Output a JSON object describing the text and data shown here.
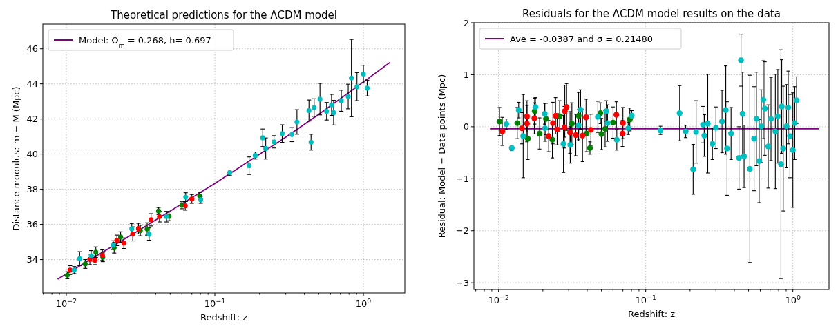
{
  "chart_data": [
    {
      "type": "scatter",
      "title": "Theoretical predictions for the ΛCDM model",
      "xlabel": "Redshift: z",
      "ylabel": "Distance modulus: m − M (Mpc)",
      "log": "x",
      "grid": true,
      "legend": "top left",
      "xlim": [
        0.00695,
        1.9
      ],
      "ylim": [
        32.1,
        47.4
      ],
      "xticks": [
        {
          "value": 0.007,
          "label": null
        },
        {
          "value": 0.008,
          "label": null
        },
        {
          "value": 0.009,
          "label": null
        },
        {
          "value": 0.01,
          "label": "10$^{−2}$"
        },
        {
          "value": 0.02,
          "label": null
        },
        {
          "value": 0.03,
          "label": null
        },
        {
          "value": 0.04,
          "label": null
        },
        {
          "value": 0.05,
          "label": null
        },
        {
          "value": 0.06,
          "label": null
        },
        {
          "value": 0.07,
          "label": null
        },
        {
          "value": 0.08,
          "label": null
        },
        {
          "value": 0.09,
          "label": null
        },
        {
          "value": 0.1,
          "label": "10$^{−1}$"
        },
        {
          "value": 0.2,
          "label": null
        },
        {
          "value": 0.3,
          "label": null
        },
        {
          "value": 0.4,
          "label": null
        },
        {
          "value": 0.5,
          "label": null
        },
        {
          "value": 0.6,
          "label": null
        },
        {
          "value": 0.7,
          "label": null
        },
        {
          "value": 0.8,
          "label": null
        },
        {
          "value": 0.9,
          "label": null
        },
        {
          "value": 1,
          "label": "10$^{0}$"
        }
      ],
      "yticks": [
        34,
        36,
        38,
        40,
        42,
        44,
        46
      ],
      "series": [
        {
          "type": "line",
          "name": "Model: Ω$_{m}$ = 0.268, h= 0.697",
          "color": "#800080",
          "line_style": "solid",
          "x": [
            0.0088,
            0.01,
            0.03,
            0.1,
            0.3,
            0.5,
            1.0,
            1.5
          ],
          "values": [
            32.9,
            33.18,
            35.6,
            38.33,
            40.97,
            42.26,
            44.11,
            45.2
          ]
        },
        {
          "marker": "circle",
          "color": "#008000",
          "x": [
            0.01015,
            0.0134,
            0.0158,
            0.0176,
            0.021,
            0.0232,
            0.0315,
            0.035,
            0.0418,
            0.0492,
            0.06,
            0.079
          ],
          "values": [
            33.11,
            33.75,
            34.42,
            34.13,
            34.67,
            35.28,
            35.65,
            35.74,
            36.76,
            36.46,
            37.09,
            37.62
          ],
          "errors": [
            0.2,
            0.25,
            0.3,
            0.25,
            0.3,
            0.3,
            0.3,
            0.35,
            0.2,
            0.25,
            0.2,
            0.2
          ]
        },
        {
          "marker": "circle",
          "color": "#ff0000",
          "x": [
            0.0106,
            0.0144,
            0.0156,
            0.0175,
            0.0219,
            0.0244,
            0.028,
            0.0306,
            0.0372,
            0.0424,
            0.0632,
            0.07
          ],
          "values": [
            33.4,
            34.01,
            33.96,
            34.25,
            35.09,
            34.93,
            35.46,
            35.76,
            36.26,
            36.44,
            37.06,
            37.45
          ],
          "errors": [
            0.25,
            0.3,
            0.25,
            0.3,
            0.3,
            0.3,
            0.4,
            0.3,
            0.35,
            0.3,
            0.25,
            0.25
          ]
        },
        {
          "marker": "circle",
          "color": "#00bfbf",
          "x": [
            0.0113,
            0.0123,
            0.0147,
            0.0207,
            0.0276,
            0.0361,
            0.0473,
            0.0636,
            0.0804,
            0.126,
            0.17,
            0.187,
            0.21,
            0.22,
            0.25,
            0.284,
            0.33,
            0.357,
            0.43,
            0.444,
            0.466,
            0.51,
            0.565,
            0.61,
            0.63,
            0.71,
            0.79,
            0.83,
            0.905,
            1.0,
            1.06
          ],
          "values": [
            33.4,
            34.05,
            34.21,
            34.82,
            35.75,
            35.45,
            36.44,
            37.55,
            37.4,
            38.95,
            39.34,
            39.92,
            40.93,
            40.32,
            40.7,
            41.17,
            41.11,
            41.83,
            42.48,
            40.68,
            42.65,
            43.13,
            42.44,
            42.8,
            42.36,
            43.04,
            43.28,
            44.33,
            43.84,
            44.56,
            43.76
          ],
          "errors": [
            0.2,
            0.4,
            0.3,
            0.25,
            0.3,
            0.35,
            0.3,
            0.25,
            0.2,
            0.15,
            0.5,
            0.2,
            0.5,
            0.6,
            0.35,
            0.5,
            0.4,
            0.7,
            0.6,
            0.45,
            0.5,
            0.9,
            0.5,
            0.6,
            0.7,
            0.6,
            0.7,
            2.2,
            0.8,
            0.5,
            0.45
          ]
        }
      ]
    },
    {
      "type": "scatter",
      "title": "Residuals for the ΛCDM model results on the data",
      "xlabel": "Redshift: z",
      "ylabel": "Residual: Model − Data points (Mpc)",
      "log": "x",
      "grid": true,
      "legend": "top left",
      "xlim": [
        0.0068,
        1.76
      ],
      "ylim": [
        -3.13,
        2.0
      ],
      "xticks": [
        {
          "value": 0.007,
          "label": null
        },
        {
          "value": 0.008,
          "label": null
        },
        {
          "value": 0.009,
          "label": null
        },
        {
          "value": 0.01,
          "label": "10$^{−2}$"
        },
        {
          "value": 0.02,
          "label": null
        },
        {
          "value": 0.03,
          "label": null
        },
        {
          "value": 0.04,
          "label": null
        },
        {
          "value": 0.05,
          "label": null
        },
        {
          "value": 0.06,
          "label": null
        },
        {
          "value": 0.07,
          "label": null
        },
        {
          "value": 0.08,
          "label": null
        },
        {
          "value": 0.09,
          "label": null
        },
        {
          "value": 0.1,
          "label": "10$^{−1}$"
        },
        {
          "value": 0.2,
          "label": null
        },
        {
          "value": 0.3,
          "label": null
        },
        {
          "value": 0.4,
          "label": null
        },
        {
          "value": 0.5,
          "label": null
        },
        {
          "value": 0.6,
          "label": null
        },
        {
          "value": 0.7,
          "label": null
        },
        {
          "value": 0.8,
          "label": null
        },
        {
          "value": 0.9,
          "label": null
        },
        {
          "value": 1,
          "label": "10$^{0}$"
        }
      ],
      "yticks": [
        {
          "value": -3,
          "label": "−3"
        },
        {
          "value": -2,
          "label": "−2"
        },
        {
          "value": -1,
          "label": "−1"
        },
        0,
        1,
        2
      ],
      "series": [
        {
          "type": "line",
          "name": "Ave = -0.0387 and σ = 0.21480",
          "color": "#800080",
          "line_style": "solid",
          "x": [
            0.0088,
            1.5
          ],
          "values": [
            -0.0387,
            -0.0387
          ]
        },
        {
          "marker": "circle",
          "color": "#008000",
          "x": [
            0.01015,
            0.0134,
            0.0158,
            0.0176,
            0.019,
            0.021,
            0.0232,
            0.026,
            0.0315,
            0.035,
            0.0397,
            0.0418,
            0.0492,
            0.05,
            0.053,
            0.06,
            0.078
          ],
          "values": [
            0.1,
            0.07,
            -0.23,
            0.3,
            -0.13,
            0.15,
            -0.25,
            0.2,
            0.06,
            0.21,
            -0.13,
            -0.41,
            0.26,
            -0.14,
            -0.04,
            0.08,
            0.14
          ],
          "errors": [
            0.27,
            0.3,
            0.4,
            0.25,
            0.3,
            0.3,
            0.35,
            0.3,
            0.4,
            0.45,
            0.35,
            0.12,
            0.2,
            0.3,
            0.35,
            0.3,
            0.22
          ]
        },
        {
          "marker": "circle",
          "color": "#ff0000",
          "x": [
            0.0106,
            0.0144,
            0.0156,
            0.0156,
            0.0175,
            0.0219,
            0.0234,
            0.0244,
            0.025,
            0.028,
            0.0282,
            0.029,
            0.0306,
            0.0335,
            0.0372,
            0.0393,
            0.0424,
            0.0632,
            0.0695,
            0.07
          ],
          "values": [
            -0.09,
            -0.03,
            0.2,
            0.06,
            0.16,
            -0.18,
            0.07,
            0.21,
            -0.05,
            -0.01,
            0.3,
            0.38,
            -0.11,
            -0.16,
            -0.17,
            0.18,
            -0.06,
            0.23,
            -0.13,
            0.07
          ],
          "errors": [
            0.27,
            0.3,
            0.3,
            0.35,
            0.3,
            0.3,
            0.4,
            0.35,
            0.3,
            0.4,
            0.5,
            0.45,
            0.4,
            0.4,
            0.5,
            0.35,
            0.3,
            0.25,
            0.25,
            0.3
          ]
        },
        {
          "marker": "circle",
          "color": "#00bfbf",
          "x": [
            0.0113,
            0.0123,
            0.0137,
            0.0147,
            0.0178,
            0.0206,
            0.0207,
            0.0276,
            0.0307,
            0.035,
            0.0361,
            0.0473,
            0.054,
            0.055,
            0.0636,
            0.076,
            0.0804,
            0.126,
            0.17,
            0.187,
            0.21,
            0.22,
            0.245,
            0.25,
            0.264,
            0.284,
            0.3,
            0.33,
            0.35,
            0.357,
            0.38,
            0.43,
            0.444,
            0.455,
            0.466,
            0.51,
            0.545,
            0.565,
            0.59,
            0.61,
            0.63,
            0.645,
            0.68,
            0.71,
            0.76,
            0.79,
            0.83,
            0.84,
            0.86,
            0.905,
            0.93,
            0.955,
            1.0,
            1.03,
            1.06
          ],
          "values": [
            0.05,
            -0.41,
            0.32,
            -0.18,
            0.38,
            0.25,
            -0.03,
            -0.33,
            -0.35,
            0.03,
            0.33,
            0.19,
            0.3,
            0.07,
            -0.25,
            -0.03,
            0.21,
            -0.07,
            0.26,
            -0.09,
            -0.82,
            -0.1,
            0.04,
            -0.17,
            0.06,
            -0.33,
            -0.02,
            0.1,
            0.32,
            -0.42,
            -0.13,
            -0.6,
            1.28,
            0.25,
            -0.57,
            -0.81,
            -0.23,
            0.15,
            -0.66,
            0.01,
            0.52,
            0.35,
            -0.38,
            0.15,
            -0.09,
            0.2,
            -0.72,
            0.39,
            -0.42,
            0.01,
            0.37,
            -0.18,
            -0.45,
            0.07,
            0.51
          ],
          "errors": [
            0.1,
            0.05,
            0.15,
            0.8,
            0.18,
            0.2,
            0.25,
            0.55,
            0.35,
            0.3,
            0.38,
            0.3,
            0.2,
            0.35,
            0.2,
            0.12,
            0.1,
            0.08,
            0.53,
            0.12,
            0.48,
            0.6,
            0.35,
            0.4,
            0.95,
            0.3,
            0.4,
            0.6,
            0.85,
            0.9,
            0.5,
            0.6,
            0.5,
            0.8,
            0.6,
            1.8,
            1.0,
            0.9,
            0.8,
            0.7,
            0.75,
            0.9,
            0.8,
            0.8,
            1.1,
            0.9,
            2.2,
            0.9,
            1.2,
            0.8,
            0.7,
            0.8,
            1.1,
            0.7,
            0.45
          ]
        }
      ]
    }
  ]
}
